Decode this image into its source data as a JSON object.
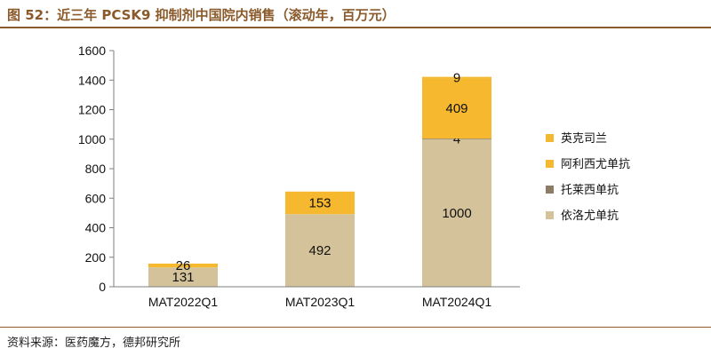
{
  "title": "图 52：近三年 PCSK9 抑制剂中国院内销售（滚动年，百万元）",
  "source": "资料来源：医药魔方，德邦研究所",
  "colors": {
    "evolocumab": "#d4c39a",
    "alirocumab": "#8c7b65",
    "tafolecimab": "#f5b82e",
    "inclisiran": "#f2b830",
    "brand": "#8b5a2b"
  },
  "chart_data": {
    "type": "bar",
    "stacked": true,
    "categories": [
      "MAT2022Q1",
      "MAT2023Q1",
      "MAT2024Q1"
    ],
    "ylim": [
      0,
      1600
    ],
    "yticks": [
      0,
      200,
      400,
      600,
      800,
      1000,
      1200,
      1400,
      1600
    ],
    "legend_position": "right",
    "series": [
      {
        "name": "依洛尤单抗",
        "color_key": "evolocumab",
        "values": [
          131,
          492,
          1000
        ]
      },
      {
        "name": "托莱西单抗",
        "color_key": "alirocumab",
        "values": [
          0,
          0,
          4
        ]
      },
      {
        "name": "阿利西尤单抗",
        "color_key": "tafolecimab",
        "values": [
          26,
          153,
          409
        ]
      },
      {
        "name": "英克司兰",
        "color_key": "inclisiran",
        "values": [
          0,
          0,
          9
        ]
      }
    ],
    "data_labels": [
      [
        "131",
        "492",
        "1000"
      ],
      [
        "",
        "",
        "4"
      ],
      [
        "26",
        "153",
        "409"
      ],
      [
        "",
        "",
        "9"
      ]
    ],
    "legend_order": [
      "英克司兰",
      "阿利西尤单抗",
      "托莱西单抗",
      "依洛尤单抗"
    ]
  }
}
